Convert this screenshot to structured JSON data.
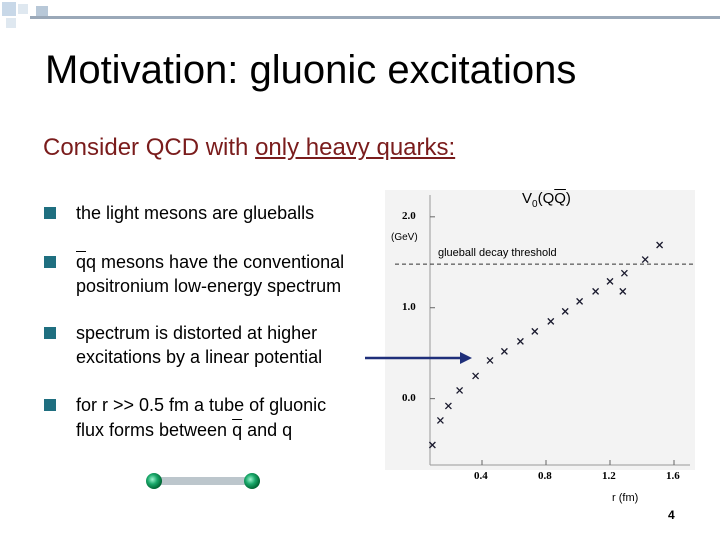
{
  "header": {
    "title": "Motivation: gluonic excitations"
  },
  "subtitle": {
    "lead": "Consider QCD with ",
    "underlined": "only heavy quarks:"
  },
  "bullets": [
    [
      "the light mesons are glueballs"
    ],
    [
      "q",
      "q mesons have the conventional",
      "positronium low-energy spectrum"
    ],
    [
      "spectrum is distorted at higher",
      "excitations by a linear potential"
    ],
    [
      "for r >> 0.5 fm a tube of gluonic",
      "flux forms between ",
      "q",
      " and q"
    ]
  ],
  "figure": {
    "type": "scatter",
    "title_parts": [
      "V",
      "0",
      "(Q",
      "Q",
      ")"
    ],
    "y_unit": "(GeV)",
    "x_label": "r (fm)",
    "threshold": {
      "label": "glueball decay threshold",
      "value": 1.48
    },
    "x": [
      0.09,
      0.14,
      0.19,
      0.26,
      0.36,
      0.45,
      0.54,
      0.64,
      0.73,
      0.83,
      0.92,
      1.01,
      1.11,
      1.2,
      1.29,
      1.28,
      1.42,
      1.51
    ],
    "values": [
      -0.51,
      -0.24,
      -0.08,
      0.09,
      0.25,
      0.42,
      0.52,
      0.63,
      0.74,
      0.85,
      0.96,
      1.07,
      1.18,
      1.29,
      1.38,
      1.18,
      1.53,
      1.69
    ],
    "color": "#1a1a2e",
    "xlim": [
      0.075,
      1.7
    ],
    "ylim": [
      -0.73,
      2.24
    ],
    "xticks": [
      0.4,
      0.8,
      1.2,
      1.6
    ],
    "yticks": [
      {
        "value": 0,
        "label": "0.0"
      },
      {
        "value": 1,
        "label": "1.0"
      },
      {
        "value": 2,
        "label": "2.0"
      }
    ]
  },
  "page": "4"
}
